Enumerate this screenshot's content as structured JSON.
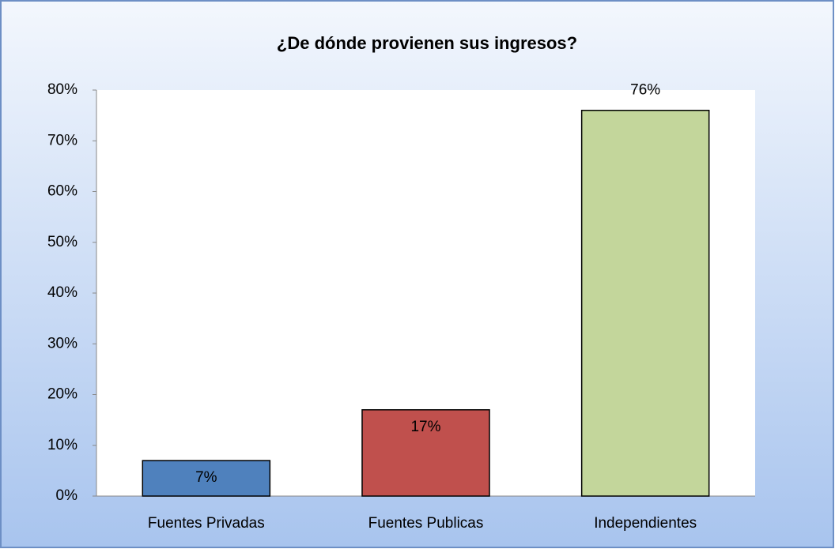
{
  "chart_data": {
    "type": "bar",
    "title": "¿De dónde provienen sus ingresos?",
    "categories": [
      "Fuentes Privadas",
      "Fuentes Publicas",
      "Independientes"
    ],
    "values": [
      7,
      17,
      76
    ],
    "value_labels": [
      "7%",
      "17%",
      "76%"
    ],
    "colors": [
      "#4f81bd",
      "#c0504d",
      "#c3d69b"
    ],
    "ylim": [
      0,
      80
    ],
    "yticks": [
      {
        "value": 0,
        "label": "0%"
      },
      {
        "value": 10,
        "label": "10%"
      },
      {
        "value": 20,
        "label": "20%"
      },
      {
        "value": 30,
        "label": "30%"
      },
      {
        "value": 40,
        "label": "40%"
      },
      {
        "value": 50,
        "label": "50%"
      },
      {
        "value": 60,
        "label": "60%"
      },
      {
        "value": 70,
        "label": "70%"
      },
      {
        "value": 80,
        "label": "80%"
      }
    ],
    "grid": false
  }
}
